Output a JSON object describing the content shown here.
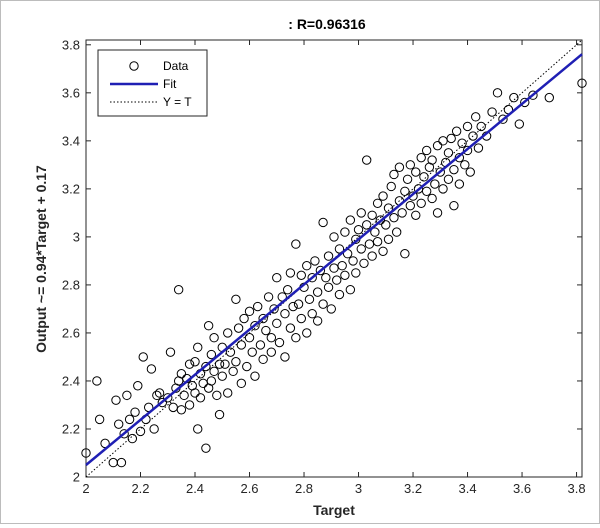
{
  "chart_data": {
    "type": "scatter",
    "title": ": R=0.96316",
    "xlabel": "Target",
    "ylabel": "Output ~= 0.94*Target + 0.17",
    "xlim": [
      2,
      3.82
    ],
    "ylim": [
      2,
      3.82
    ],
    "xticks": [
      "2",
      "2.2",
      "2.4",
      "2.6",
      "2.8",
      "3",
      "3.2",
      "3.4",
      "3.6",
      "3.8"
    ],
    "yticks": [
      "2",
      "2.2",
      "2.4",
      "2.6",
      "2.8",
      "3",
      "3.2",
      "3.4",
      "3.6",
      "3.8"
    ],
    "grid": false,
    "legend_position": "top-left",
    "legend": [
      {
        "label": "Data",
        "style": "marker"
      },
      {
        "label": "Fit",
        "style": "solid"
      },
      {
        "label": "Y = T",
        "style": "dotted"
      }
    ],
    "fit": {
      "slope": 0.94,
      "intercept": 0.17,
      "color": "#1f1fb4"
    },
    "identity_color": "#000000",
    "marker_color": "#000000",
    "points": [
      [
        2.0,
        2.1
      ],
      [
        2.04,
        2.4
      ],
      [
        2.05,
        2.24
      ],
      [
        2.07,
        2.14
      ],
      [
        2.1,
        2.06
      ],
      [
        2.11,
        2.32
      ],
      [
        2.12,
        2.22
      ],
      [
        2.13,
        2.06
      ],
      [
        2.14,
        2.18
      ],
      [
        2.15,
        2.34
      ],
      [
        2.16,
        2.24
      ],
      [
        2.17,
        2.16
      ],
      [
        2.18,
        2.27
      ],
      [
        2.19,
        2.38
      ],
      [
        2.2,
        2.19
      ],
      [
        2.21,
        2.5
      ],
      [
        2.22,
        2.24
      ],
      [
        2.23,
        2.29
      ],
      [
        2.24,
        2.45
      ],
      [
        2.25,
        2.2
      ],
      [
        2.26,
        2.34
      ],
      [
        2.27,
        2.35
      ],
      [
        2.28,
        2.31
      ],
      [
        2.3,
        2.33
      ],
      [
        2.31,
        2.52
      ],
      [
        2.32,
        2.29
      ],
      [
        2.33,
        2.37
      ],
      [
        2.34,
        2.78
      ],
      [
        2.34,
        2.4
      ],
      [
        2.35,
        2.43
      ],
      [
        2.35,
        2.28
      ],
      [
        2.36,
        2.34
      ],
      [
        2.37,
        2.41
      ],
      [
        2.38,
        2.47
      ],
      [
        2.38,
        2.3
      ],
      [
        2.39,
        2.38
      ],
      [
        2.4,
        2.48
      ],
      [
        2.4,
        2.35
      ],
      [
        2.41,
        2.54
      ],
      [
        2.41,
        2.2
      ],
      [
        2.42,
        2.43
      ],
      [
        2.42,
        2.33
      ],
      [
        2.43,
        2.39
      ],
      [
        2.44,
        2.46
      ],
      [
        2.44,
        2.12
      ],
      [
        2.45,
        2.37
      ],
      [
        2.45,
        2.63
      ],
      [
        2.46,
        2.51
      ],
      [
        2.46,
        2.4
      ],
      [
        2.47,
        2.58
      ],
      [
        2.47,
        2.44
      ],
      [
        2.48,
        2.34
      ],
      [
        2.49,
        2.47
      ],
      [
        2.49,
        2.26
      ],
      [
        2.5,
        2.42
      ],
      [
        2.5,
        2.54
      ],
      [
        2.51,
        2.47
      ],
      [
        2.52,
        2.6
      ],
      [
        2.52,
        2.35
      ],
      [
        2.53,
        2.52
      ],
      [
        2.54,
        2.44
      ],
      [
        2.55,
        2.48
      ],
      [
        2.55,
        2.74
      ],
      [
        2.56,
        2.62
      ],
      [
        2.57,
        2.39
      ],
      [
        2.57,
        2.55
      ],
      [
        2.58,
        2.66
      ],
      [
        2.59,
        2.46
      ],
      [
        2.6,
        2.58
      ],
      [
        2.6,
        2.69
      ],
      [
        2.61,
        2.52
      ],
      [
        2.62,
        2.63
      ],
      [
        2.62,
        2.42
      ],
      [
        2.63,
        2.71
      ],
      [
        2.64,
        2.55
      ],
      [
        2.65,
        2.66
      ],
      [
        2.65,
        2.49
      ],
      [
        2.66,
        2.61
      ],
      [
        2.67,
        2.75
      ],
      [
        2.68,
        2.58
      ],
      [
        2.68,
        2.52
      ],
      [
        2.69,
        2.7
      ],
      [
        2.7,
        2.64
      ],
      [
        2.7,
        2.83
      ],
      [
        2.71,
        2.56
      ],
      [
        2.72,
        2.75
      ],
      [
        2.73,
        2.5
      ],
      [
        2.73,
        2.68
      ],
      [
        2.74,
        2.78
      ],
      [
        2.75,
        2.62
      ],
      [
        2.75,
        2.85
      ],
      [
        2.76,
        2.71
      ],
      [
        2.77,
        2.97
      ],
      [
        2.77,
        2.58
      ],
      [
        2.78,
        2.72
      ],
      [
        2.79,
        2.84
      ],
      [
        2.79,
        2.66
      ],
      [
        2.8,
        2.79
      ],
      [
        2.81,
        2.6
      ],
      [
        2.81,
        2.88
      ],
      [
        2.82,
        2.74
      ],
      [
        2.83,
        2.83
      ],
      [
        2.83,
        2.68
      ],
      [
        2.84,
        2.9
      ],
      [
        2.85,
        2.77
      ],
      [
        2.85,
        2.65
      ],
      [
        2.86,
        2.86
      ],
      [
        2.87,
        2.72
      ],
      [
        2.87,
        3.06
      ],
      [
        2.88,
        2.83
      ],
      [
        2.89,
        2.79
      ],
      [
        2.89,
        2.92
      ],
      [
        2.9,
        2.7
      ],
      [
        2.91,
        2.87
      ],
      [
        2.91,
        3.0
      ],
      [
        2.92,
        2.82
      ],
      [
        2.93,
        2.95
      ],
      [
        2.93,
        2.76
      ],
      [
        2.94,
        2.88
      ],
      [
        2.95,
        3.02
      ],
      [
        2.95,
        2.84
      ],
      [
        2.96,
        2.93
      ],
      [
        2.97,
        2.78
      ],
      [
        2.97,
        3.07
      ],
      [
        2.98,
        2.9
      ],
      [
        2.99,
        2.99
      ],
      [
        2.99,
        2.85
      ],
      [
        3.0,
        3.03
      ],
      [
        3.01,
        2.95
      ],
      [
        3.01,
        3.1
      ],
      [
        3.02,
        2.89
      ],
      [
        3.03,
        3.05
      ],
      [
        3.03,
        3.32
      ],
      [
        3.04,
        2.97
      ],
      [
        3.05,
        3.09
      ],
      [
        3.05,
        2.92
      ],
      [
        3.06,
        3.02
      ],
      [
        3.07,
        3.14
      ],
      [
        3.07,
        2.98
      ],
      [
        3.08,
        3.07
      ],
      [
        3.09,
        2.94
      ],
      [
        3.09,
        3.17
      ],
      [
        3.1,
        3.05
      ],
      [
        3.11,
        3.12
      ],
      [
        3.11,
        2.99
      ],
      [
        3.12,
        3.21
      ],
      [
        3.13,
        3.08
      ],
      [
        3.13,
        3.26
      ],
      [
        3.14,
        3.02
      ],
      [
        3.15,
        3.15
      ],
      [
        3.15,
        3.29
      ],
      [
        3.16,
        3.1
      ],
      [
        3.17,
        3.19
      ],
      [
        3.17,
        2.93
      ],
      [
        3.18,
        3.24
      ],
      [
        3.19,
        3.13
      ],
      [
        3.19,
        3.3
      ],
      [
        3.2,
        3.17
      ],
      [
        3.21,
        3.09
      ],
      [
        3.21,
        3.27
      ],
      [
        3.22,
        3.2
      ],
      [
        3.23,
        3.33
      ],
      [
        3.23,
        3.14
      ],
      [
        3.24,
        3.25
      ],
      [
        3.25,
        3.19
      ],
      [
        3.25,
        3.36
      ],
      [
        3.26,
        3.29
      ],
      [
        3.27,
        3.16
      ],
      [
        3.27,
        3.32
      ],
      [
        3.28,
        3.22
      ],
      [
        3.29,
        3.38
      ],
      [
        3.29,
        3.1
      ],
      [
        3.3,
        3.27
      ],
      [
        3.31,
        3.4
      ],
      [
        3.31,
        3.2
      ],
      [
        3.32,
        3.31
      ],
      [
        3.33,
        3.35
      ],
      [
        3.33,
        3.24
      ],
      [
        3.34,
        3.41
      ],
      [
        3.35,
        3.28
      ],
      [
        3.35,
        3.13
      ],
      [
        3.36,
        3.44
      ],
      [
        3.37,
        3.33
      ],
      [
        3.37,
        3.22
      ],
      [
        3.38,
        3.39
      ],
      [
        3.39,
        3.3
      ],
      [
        3.4,
        3.46
      ],
      [
        3.4,
        3.36
      ],
      [
        3.41,
        3.27
      ],
      [
        3.42,
        3.42
      ],
      [
        3.43,
        3.5
      ],
      [
        3.44,
        3.37
      ],
      [
        3.45,
        3.46
      ],
      [
        3.47,
        3.42
      ],
      [
        3.49,
        3.52
      ],
      [
        3.51,
        3.6
      ],
      [
        3.53,
        3.49
      ],
      [
        3.55,
        3.53
      ],
      [
        3.57,
        3.58
      ],
      [
        3.59,
        3.47
      ],
      [
        3.61,
        3.56
      ],
      [
        3.64,
        3.59
      ],
      [
        3.7,
        3.58
      ],
      [
        3.82,
        3.64
      ]
    ]
  }
}
